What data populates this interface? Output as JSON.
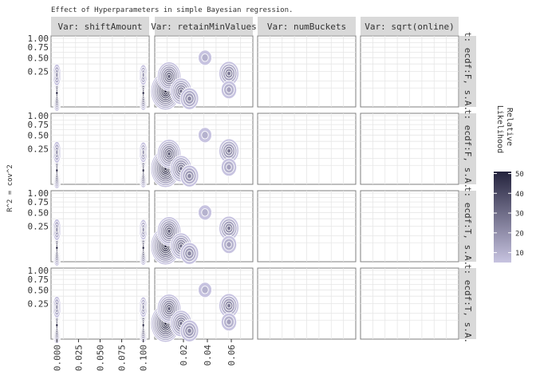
{
  "chart_data": {
    "type": "heatmap",
    "title": "Effect of Hyperparameters in simple Bayesian regression.",
    "ylabel": "R^2 = cov^2",
    "column_facets": [
      "Var: shiftAmount",
      "Var: retainMinValues",
      "Var: numBuckets",
      "Var: sqrt(online)"
    ],
    "row_facets": [
      "t: ecdf:F, s.A.",
      "t: ecdf:F, s.A.",
      "t: ecdf:T, s.A.",
      "t: ecdf:T, s.A."
    ],
    "y_ticks": [
      "1.00",
      "0.75",
      "0.50",
      "0.25"
    ],
    "y_tick_values": [
      1.0,
      0.75,
      0.5,
      0.25
    ],
    "y_scale": "sqrt",
    "x_axes": [
      {
        "column": 0,
        "ticks": [
          "0.000",
          "0.025",
          "0.050",
          "0.075",
          "0.100"
        ],
        "tick_values": [
          0,
          0.025,
          0.05,
          0.075,
          0.1
        ],
        "range": [
          -0.004,
          0.104
        ]
      },
      {
        "column": 1,
        "ticks": [
          "0.02",
          "0.04",
          "0.06"
        ],
        "tick_values": [
          0.02,
          0.04,
          0.06
        ],
        "range": [
          -0.002,
          0.076
        ]
      }
    ],
    "legend": {
      "title": "Relative Likelihood",
      "ticks": [
        "50",
        "40",
        "30",
        "20",
        "10"
      ],
      "tick_values": [
        50,
        40,
        30,
        20,
        10
      ],
      "range": [
        5,
        51
      ],
      "color_low": "#c7c3e0",
      "color_high": "#24233d",
      "position": "right"
    },
    "density_modes": [
      {
        "column": 0,
        "modes": [
          {
            "x": 0.0,
            "y": 0.03,
            "peak": 48
          },
          {
            "x": 0.0,
            "y": 0.2,
            "peak": 22
          },
          {
            "x": 0.1,
            "y": 0.03,
            "peak": 45
          },
          {
            "x": 0.1,
            "y": 0.2,
            "peak": 20
          }
        ]
      },
      {
        "column": 1,
        "modes": [
          {
            "x": 0.005,
            "y": 0.04,
            "peak": 50
          },
          {
            "x": 0.008,
            "y": 0.18,
            "peak": 35
          },
          {
            "x": 0.018,
            "y": 0.04,
            "peak": 30
          },
          {
            "x": 0.025,
            "y": 0.008,
            "peak": 22
          },
          {
            "x": 0.058,
            "y": 0.22,
            "peak": 26
          },
          {
            "x": 0.058,
            "y": 0.05,
            "peak": 15
          },
          {
            "x": 0.038,
            "y": 0.5,
            "peak": 10
          }
        ]
      },
      {
        "column": 2,
        "modes": []
      },
      {
        "column": 3,
        "modes": []
      }
    ]
  }
}
